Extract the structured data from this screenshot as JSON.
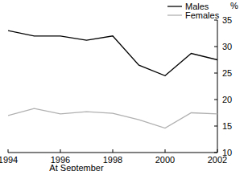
{
  "chart_data": {
    "type": "line",
    "x": [
      1994,
      1995,
      1996,
      1997,
      1998,
      1999,
      2000,
      2001,
      2002
    ],
    "series": [
      {
        "name": "Males",
        "color": "#000000",
        "values": [
          33,
          32,
          32,
          31.2,
          32,
          26.5,
          24.5,
          28.7,
          27.5
        ]
      },
      {
        "name": "Females",
        "color": "#b0b0b0",
        "values": [
          17,
          18.3,
          17.3,
          17.7,
          17.4,
          16.2,
          14.6,
          17.5,
          17.3
        ]
      }
    ],
    "xlabel": "At September",
    "ylabel": "%",
    "xlim": [
      1994,
      2002
    ],
    "xticks": [
      1994,
      1996,
      1998,
      2000,
      2002
    ],
    "ylim": [
      10,
      35
    ],
    "yticks": [
      10,
      15,
      20,
      25,
      30,
      35
    ],
    "legend": "top-right",
    "grid": false
  }
}
